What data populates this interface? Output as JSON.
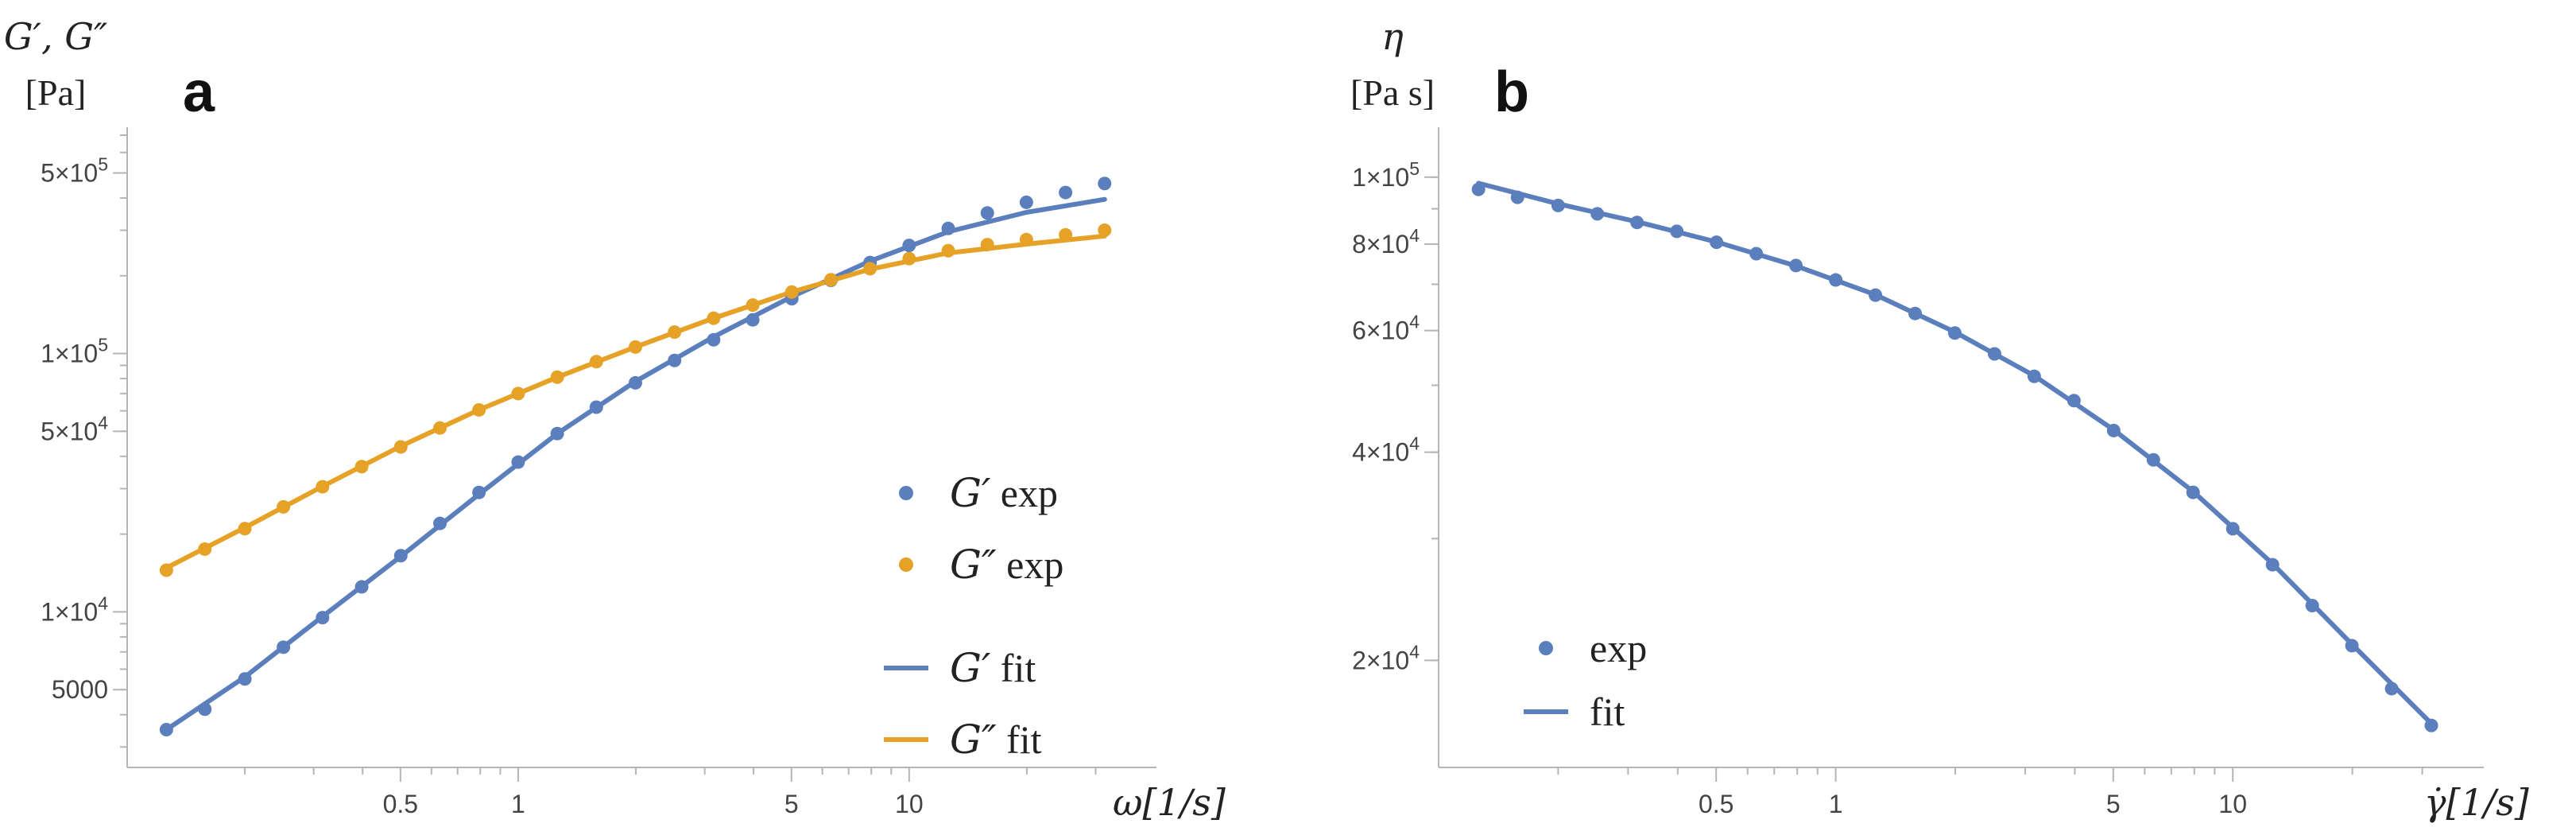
{
  "colors": {
    "blue": "#5b7fbd",
    "orange": "#e6a127",
    "axis": "#b5b5b5"
  },
  "chart_data": [
    {
      "panel": "a",
      "type": "scatter",
      "xscale": "log",
      "yscale": "log",
      "xlim": [
        0.1,
        40
      ],
      "ylim": [
        2500,
        700000
      ],
      "ylabel": "G′, G″",
      "ylabel_unit": "[Pa]",
      "xlabel": "ω[1/s]",
      "xticks": [
        {
          "value": 0.5,
          "label": "0.5"
        },
        {
          "value": 1,
          "label": "1"
        },
        {
          "value": 5,
          "label": "5"
        },
        {
          "value": 10,
          "label": "10"
        }
      ],
      "yticks": [
        {
          "value": 5000,
          "label": "5000"
        },
        {
          "value": 10000,
          "label": "1×10",
          "exp": "4"
        },
        {
          "value": 50000,
          "label": "5×10",
          "exp": "4"
        },
        {
          "value": 100000,
          "label": "1×10",
          "exp": "5"
        },
        {
          "value": 500000,
          "label": "5×10",
          "exp": "5"
        }
      ],
      "legend_position": "bottom-right",
      "series": [
        {
          "name": "G′",
          "legend_label": "exp",
          "kind": "points",
          "color": "#5b7fbd",
          "x": [
            0.126,
            0.158,
            0.2,
            0.251,
            0.316,
            0.398,
            0.501,
            0.631,
            0.794,
            1.0,
            1.259,
            1.585,
            1.995,
            2.512,
            3.162,
            3.981,
            5.012,
            6.31,
            7.943,
            10.0,
            12.59,
            15.85,
            19.95,
            25.12,
            31.62
          ],
          "y": [
            3500,
            4200,
            5500,
            7300,
            9500,
            12500,
            16500,
            22000,
            29000,
            38000,
            49000,
            62000,
            77000,
            94000,
            113000,
            135000,
            163000,
            192000,
            225000,
            262000,
            305000,
            350000,
            385000,
            420000,
            455000
          ]
        },
        {
          "name": "G″",
          "legend_label": "exp",
          "kind": "points",
          "color": "#e6a127",
          "x": [
            0.126,
            0.158,
            0.2,
            0.251,
            0.316,
            0.398,
            0.501,
            0.631,
            0.794,
            1.0,
            1.259,
            1.585,
            1.995,
            2.512,
            3.162,
            3.981,
            5.012,
            6.31,
            7.943,
            10.0,
            12.59,
            15.85,
            19.95,
            25.12,
            31.62
          ],
          "y": [
            14500,
            17500,
            21000,
            25500,
            30500,
            36500,
            43500,
            51500,
            60500,
            70000,
            81000,
            93000,
            106000,
            121000,
            137000,
            154000,
            173000,
            193000,
            213000,
            233000,
            250000,
            264000,
            276000,
            288000,
            300000
          ]
        },
        {
          "name": "G′",
          "legend_label": "fit",
          "kind": "line",
          "color": "#5b7fbd",
          "x": [
            0.126,
            0.2,
            0.316,
            0.501,
            0.794,
            1.259,
            1.995,
            3.162,
            5.012,
            7.943,
            12.59,
            19.95,
            31.62
          ],
          "y": [
            3500,
            5600,
            9600,
            16400,
            28500,
            49000,
            78000,
            116000,
            166000,
            228000,
            296000,
            352000,
            395000
          ]
        },
        {
          "name": "G″",
          "legend_label": "fit",
          "kind": "line",
          "color": "#e6a127",
          "x": [
            0.126,
            0.2,
            0.316,
            0.501,
            0.794,
            1.259,
            1.995,
            3.162,
            5.012,
            7.943,
            12.59,
            19.95,
            31.62
          ],
          "y": [
            14800,
            21200,
            30600,
            43800,
            60500,
            81000,
            106000,
            137000,
            173000,
            212000,
            245000,
            265000,
            285000
          ]
        }
      ]
    },
    {
      "panel": "b",
      "type": "scatter",
      "xscale": "log",
      "yscale": "log",
      "xlim": [
        0.1,
        40
      ],
      "ylim": [
        14000,
        115000
      ],
      "ylabel": "η",
      "ylabel_unit": "[Pa s]",
      "xlabel": "γ̇[1/s]",
      "xticks": [
        {
          "value": 0.5,
          "label": "0.5"
        },
        {
          "value": 1,
          "label": "1"
        },
        {
          "value": 5,
          "label": "5"
        },
        {
          "value": 10,
          "label": "10"
        }
      ],
      "yticks": [
        {
          "value": 20000,
          "label": "2×10",
          "exp": "4"
        },
        {
          "value": 40000,
          "label": "4×10",
          "exp": "4"
        },
        {
          "value": 60000,
          "label": "6×10",
          "exp": "4"
        },
        {
          "value": 80000,
          "label": "8×10",
          "exp": "4"
        },
        {
          "value": 100000,
          "label": "1×10",
          "exp": "5"
        }
      ],
      "legend_position": "bottom-left",
      "series": [
        {
          "name": "",
          "legend_label": "exp",
          "kind": "points",
          "color": "#5b7fbd",
          "x": [
            0.126,
            0.158,
            0.2,
            0.251,
            0.316,
            0.398,
            0.501,
            0.631,
            0.794,
            1.0,
            1.259,
            1.585,
            1.995,
            2.512,
            3.162,
            3.981,
            5.012,
            6.31,
            7.943,
            10.0,
            12.59,
            15.85,
            19.95,
            25.12,
            31.62
          ],
          "y": [
            96000,
            93500,
            91000,
            88500,
            86000,
            83500,
            80500,
            77500,
            74500,
            71000,
            67500,
            63500,
            59500,
            55500,
            51500,
            47500,
            43000,
            39000,
            35000,
            31000,
            27500,
            24000,
            21000,
            18200,
            16100
          ]
        },
        {
          "name": "",
          "legend_label": "fit",
          "kind": "line",
          "color": "#5b7fbd",
          "x": [
            0.126,
            0.2,
            0.316,
            0.501,
            0.794,
            1.259,
            1.995,
            3.162,
            5.012,
            7.943,
            12.59,
            19.95,
            31.62
          ],
          "y": [
            98000,
            91500,
            86200,
            80600,
            74400,
            67600,
            59700,
            51600,
            43100,
            35100,
            27600,
            21100,
            16200
          ]
        }
      ]
    }
  ]
}
